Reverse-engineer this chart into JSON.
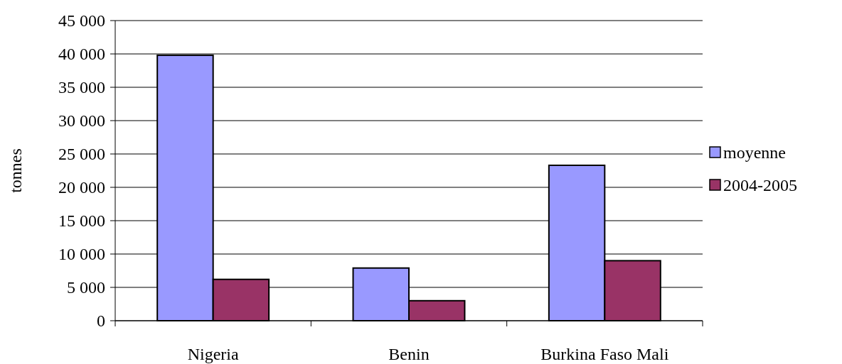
{
  "chart_data": {
    "type": "bar",
    "ylabel": "tonnes",
    "categories": [
      "Nigeria",
      "Benin",
      "Burkina Faso Mali"
    ],
    "series": [
      {
        "name": "moyenne",
        "color": "#9999ff",
        "values": [
          39800,
          7900,
          23300
        ]
      },
      {
        "name": "2004-2005",
        "color": "#993366",
        "values": [
          6200,
          3000,
          9000
        ]
      }
    ],
    "ylim": [
      0,
      45000
    ],
    "yticks": [
      0,
      {
        "value": 5000,
        "label": "5 000"
      },
      {
        "value": 10000,
        "label": "10 000"
      },
      {
        "value": 15000,
        "label": "15 000"
      },
      {
        "value": 20000,
        "label": "20 000"
      },
      {
        "value": 25000,
        "label": "25 000"
      },
      {
        "value": 30000,
        "label": "30 000"
      },
      {
        "value": 35000,
        "label": "35 000"
      },
      {
        "value": 40000,
        "label": "40 000"
      },
      {
        "value": 45000,
        "label": "45 000"
      }
    ],
    "grid": "y",
    "legend": "right"
  }
}
